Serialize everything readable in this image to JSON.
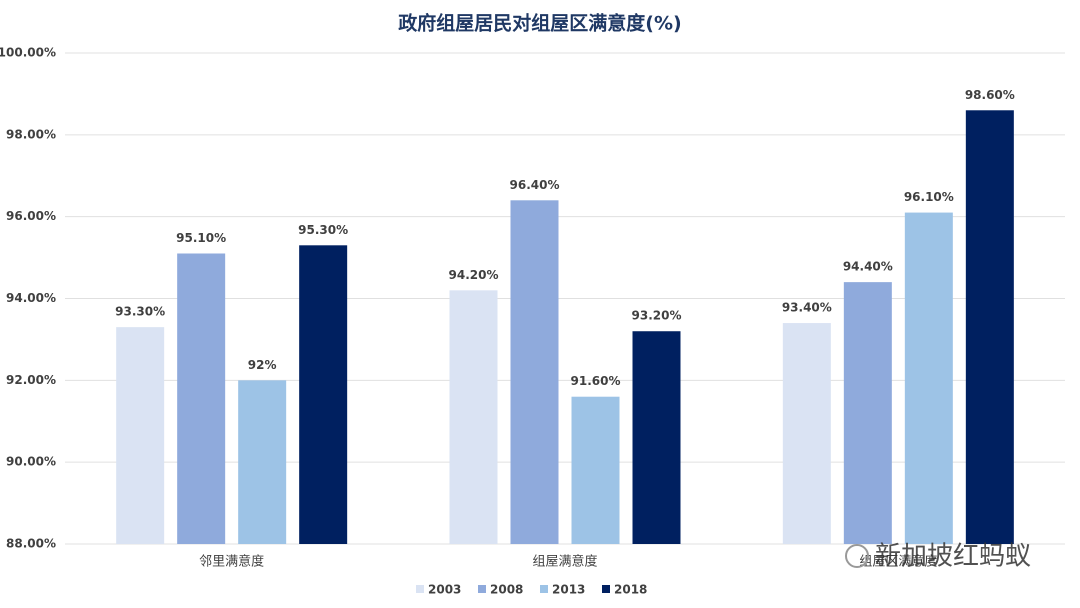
{
  "chart_data": {
    "type": "bar",
    "title": "政府组屋居民对组屋区满意度(%)",
    "categories": [
      "邻里满意度",
      "组屋满意度",
      "组屋区满意度"
    ],
    "series": [
      {
        "name": "2003",
        "color": "#dae3f3",
        "values": [
          93.3,
          94.2,
          93.4
        ],
        "value_labels": [
          "93.30%",
          "94.20%",
          "93.40%"
        ]
      },
      {
        "name": "2008",
        "color": "#8faadc",
        "values": [
          95.1,
          96.4,
          94.4
        ],
        "value_labels": [
          "95.10%",
          "96.40%",
          "94.40%"
        ]
      },
      {
        "name": "2013",
        "color": "#9dc3e6",
        "values": [
          92,
          91.6,
          96.1
        ],
        "value_labels": [
          "92%",
          "91.60%",
          "96.10%"
        ]
      },
      {
        "name": "2018",
        "color": "#002060",
        "values": [
          95.3,
          93.2,
          98.6
        ],
        "value_labels": [
          "95.30%",
          "93.20%",
          "98.60%"
        ]
      }
    ],
    "ylim": [
      88,
      100
    ],
    "yticks": [
      {
        "value": 88,
        "label": "88.00%"
      },
      {
        "value": 90,
        "label": "90.00%"
      },
      {
        "value": 92,
        "label": "92.00%"
      },
      {
        "value": 94,
        "label": "94.00%"
      },
      {
        "value": 96,
        "label": "96.00%"
      },
      {
        "value": 98,
        "label": "98.00%"
      },
      {
        "value": 100,
        "label": "100.00%"
      }
    ],
    "grid": true,
    "legend": "bottom",
    "watermark": "新加坡红蚂蚁"
  }
}
